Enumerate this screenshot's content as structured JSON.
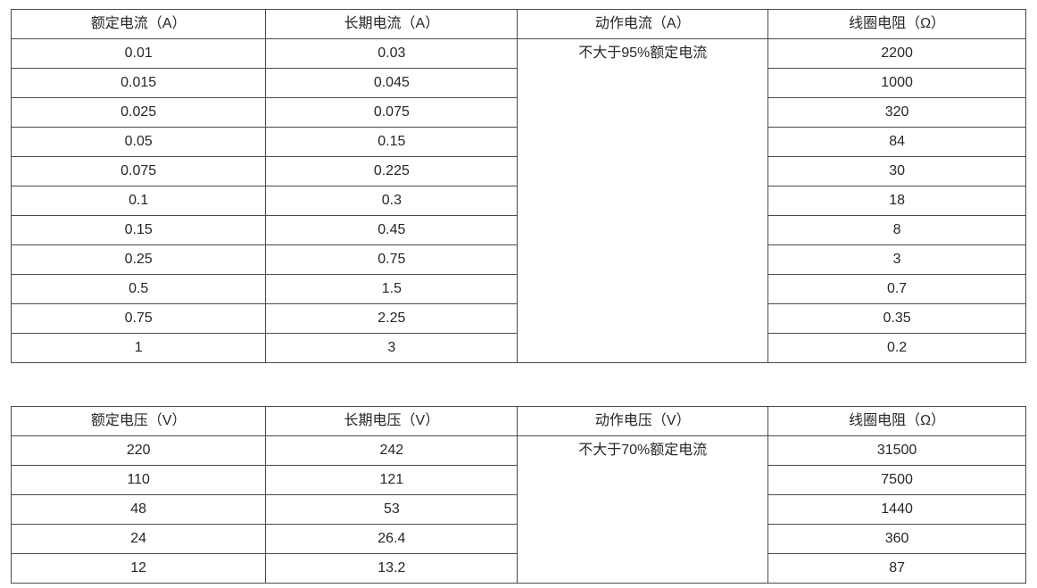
{
  "page": {
    "background_color": "#ffffff",
    "border_color": "#4a4a4a",
    "text_color": "#262626"
  },
  "tables": [
    {
      "name": "current-spec-table",
      "headers": [
        "额定电流（A）",
        "长期电流（A）",
        "动作电流（A）",
        "线圈电阻（Ω）"
      ],
      "merged_cell": {
        "column": 2,
        "text": "不大于95%额定电流"
      },
      "rows": [
        [
          "0.01",
          "0.03",
          "2200"
        ],
        [
          "0.015",
          "0.045",
          "1000"
        ],
        [
          "0.025",
          "0.075",
          "320"
        ],
        [
          "0.05",
          "0.15",
          "84"
        ],
        [
          "0.075",
          "0.225",
          "30"
        ],
        [
          "0.1",
          "0.3",
          "18"
        ],
        [
          "0.15",
          "0.45",
          "8"
        ],
        [
          "0.25",
          "0.75",
          "3"
        ],
        [
          "0.5",
          "1.5",
          "0.7"
        ],
        [
          "0.75",
          "2.25",
          "0.35"
        ],
        [
          "1",
          "3",
          "0.2"
        ]
      ]
    },
    {
      "name": "voltage-spec-table",
      "headers": [
        "额定电压（V）",
        "长期电压（V）",
        "动作电压（V）",
        "线圈电阻（Ω）"
      ],
      "merged_cell": {
        "column": 2,
        "text": "不大于70%额定电流"
      },
      "rows": [
        [
          "220",
          "242",
          "31500"
        ],
        [
          "110",
          "121",
          "7500"
        ],
        [
          "48",
          "53",
          "1440"
        ],
        [
          "24",
          "26.4",
          "360"
        ],
        [
          "12",
          "13.2",
          "87"
        ]
      ]
    }
  ]
}
